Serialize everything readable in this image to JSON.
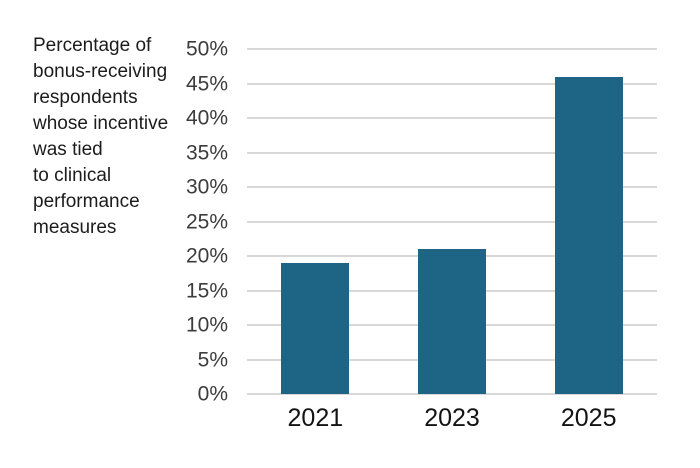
{
  "caption": {
    "lines": [
      "Percentage of",
      "bonus-receiving",
      "respondents",
      "whose incentive",
      "was tied",
      "to clinical",
      "performance",
      "measures"
    ]
  },
  "chart_data": {
    "type": "bar",
    "title": "Percentage of bonus-receiving respondents whose incentive was tied to clinical performance measures",
    "categories": [
      "2021",
      "2023",
      "2025"
    ],
    "values": [
      19,
      21,
      46
    ],
    "xlabel": "",
    "ylabel": "",
    "ylim": [
      0,
      50
    ],
    "ytick_step": 5,
    "ytick_labels": [
      "0%",
      "5%",
      "10%",
      "15%",
      "20%",
      "25%",
      "30%",
      "35%",
      "40%",
      "45%",
      "50%"
    ],
    "grid": "horizontal",
    "legend": "none",
    "colors": {
      "bar": "#1d6485",
      "gridline": "#d8d8d8",
      "ytick_text": "#3c3c3c",
      "xtick_text": "#131313",
      "caption_text": "#1c1c1c"
    }
  }
}
